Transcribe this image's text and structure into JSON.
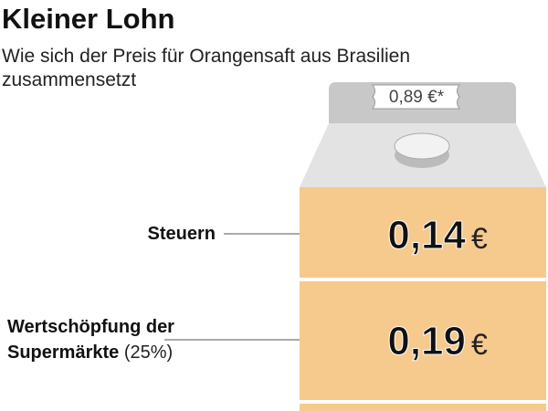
{
  "header": {
    "title": "Kleiner Lohn",
    "subtitle_lines": [
      "Wie sich der Preis für Orangensaft aus Brasilien",
      "zusammensetzt"
    ]
  },
  "price_tag": "0,89 €*",
  "items": [
    {
      "label_lines": [
        "Steuern"
      ],
      "value": "0,14",
      "unit": "€"
    },
    {
      "label_lines": [
        "Wertschöpfung der",
        "Supermärkte"
      ],
      "note": "(25%)",
      "value": "0,19",
      "unit": "€"
    }
  ]
}
